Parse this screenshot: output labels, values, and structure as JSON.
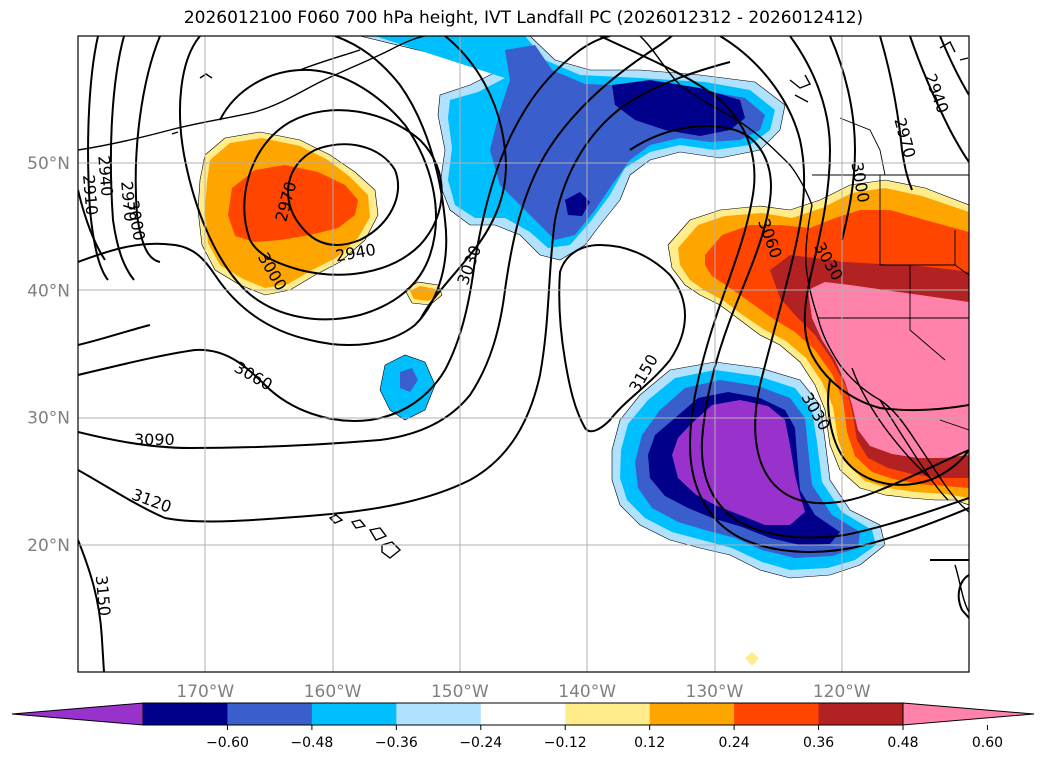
{
  "title": "2026012100 F060 700 hPa height, IVT Landfall PC (2026012312 - 2026012412)",
  "map": {
    "lon_range": [
      -180,
      -110
    ],
    "lat_range": [
      10,
      60
    ],
    "lon_ticks": [
      {
        "lon": -170,
        "label": "170°W"
      },
      {
        "lon": -160,
        "label": "160°W"
      },
      {
        "lon": -150,
        "label": "150°W"
      },
      {
        "lon": -140,
        "label": "140°W"
      },
      {
        "lon": -130,
        "label": "130°W"
      },
      {
        "lon": -120,
        "label": "120°W"
      }
    ],
    "lat_ticks": [
      {
        "lat": 50,
        "label": "50°N"
      },
      {
        "lat": 40,
        "label": "40°N"
      },
      {
        "lat": 30,
        "label": "30°N"
      },
      {
        "lat": 20,
        "label": "20°N"
      }
    ],
    "grid": true,
    "contour_labels": [
      {
        "text": "2940",
        "lon": -177.8,
        "lat": 49.0,
        "rot": 85
      },
      {
        "text": "2910",
        "lon": -179.0,
        "lat": 47.5,
        "rot": 85
      },
      {
        "text": "2970",
        "lon": -176.0,
        "lat": 47.0,
        "rot": 85
      },
      {
        "text": "3000",
        "lon": -175.4,
        "lat": 45.5,
        "rot": 80
      },
      {
        "text": "2970",
        "lon": -163.7,
        "lat": 47.0,
        "rot": -75
      },
      {
        "text": "3000",
        "lon": -164.7,
        "lat": 41.5,
        "rot": 60
      },
      {
        "text": "2940",
        "lon": -158.2,
        "lat": 43.0,
        "rot": -10
      },
      {
        "text": "3030",
        "lon": -149.3,
        "lat": 42.0,
        "rot": -70
      },
      {
        "text": "3060",
        "lon": -166.2,
        "lat": 33.3,
        "rot": 30
      },
      {
        "text": "3090",
        "lon": -174.0,
        "lat": 28.3,
        "rot": 0
      },
      {
        "text": "3120",
        "lon": -174.2,
        "lat": 23.5,
        "rot": 20
      },
      {
        "text": "3150",
        "lon": -178.0,
        "lat": 16.0,
        "rot": 85
      },
      {
        "text": "3150",
        "lon": -135.6,
        "lat": 33.5,
        "rot": -60
      },
      {
        "text": "3060",
        "lon": -125.6,
        "lat": 44.1,
        "rot": 70
      },
      {
        "text": "3030",
        "lon": -121.0,
        "lat": 42.3,
        "rot": 60
      },
      {
        "text": "3000",
        "lon": -118.5,
        "lat": 48.5,
        "rot": 80
      },
      {
        "text": "2970",
        "lon": -115.0,
        "lat": 52.0,
        "rot": 75
      },
      {
        "text": "2940",
        "lon": -112.5,
        "lat": 55.5,
        "rot": 70
      },
      {
        "text": "3030",
        "lon": -122.0,
        "lat": 30.5,
        "rot": 60
      }
    ]
  },
  "colorbar": {
    "colors": [
      "#9932cc",
      "#00008b",
      "#3a5fcd",
      "#00bfff",
      "#b0e2ff",
      "#ffffff",
      "#ffec8b",
      "#ffa500",
      "#ff4500",
      "#b22222",
      "#ff82ab"
    ],
    "labels": [
      "−0.60",
      "−0.48",
      "−0.36",
      "−0.24",
      "−0.12",
      "0.12",
      "0.24",
      "0.36",
      "0.48",
      "0.60"
    ]
  }
}
